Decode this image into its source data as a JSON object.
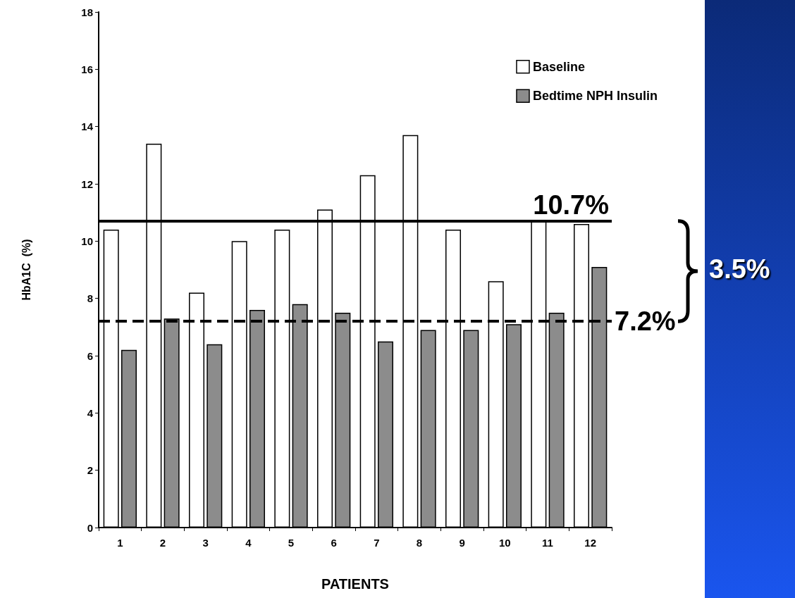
{
  "chart_data": {
    "type": "bar",
    "xlabel": "PATIENTS",
    "ylabel": "HbA1C  (%)",
    "categories": [
      "1",
      "2",
      "3",
      "4",
      "5",
      "6",
      "7",
      "8",
      "9",
      "10",
      "11",
      "12"
    ],
    "series": [
      {
        "name": "Baseline",
        "color": "#ffffff",
        "values": [
          10.4,
          13.4,
          8.2,
          10.0,
          10.4,
          11.1,
          12.3,
          13.7,
          10.4,
          8.6,
          10.7,
          10.6
        ]
      },
      {
        "name": "Bedtime NPH Insulin",
        "color": "#8c8c8c",
        "values": [
          6.2,
          7.3,
          6.4,
          7.6,
          7.8,
          7.5,
          6.5,
          6.9,
          6.9,
          7.1,
          7.5,
          9.1
        ]
      }
    ],
    "ylim": [
      0,
      18
    ],
    "yticks": [
      0,
      2,
      4,
      6,
      8,
      10,
      12,
      14,
      16,
      18
    ],
    "grid": false,
    "legend": "top right",
    "ref_lines": [
      {
        "axis": "y",
        "value": 10.7,
        "label": "10.7%",
        "color": "#000000",
        "line_style": "solid"
      },
      {
        "axis": "y",
        "value": 7.2,
        "label": "7.2%",
        "color": "#000000",
        "line_style": "dashed"
      }
    ],
    "annotations": [
      "3.5%"
    ]
  }
}
